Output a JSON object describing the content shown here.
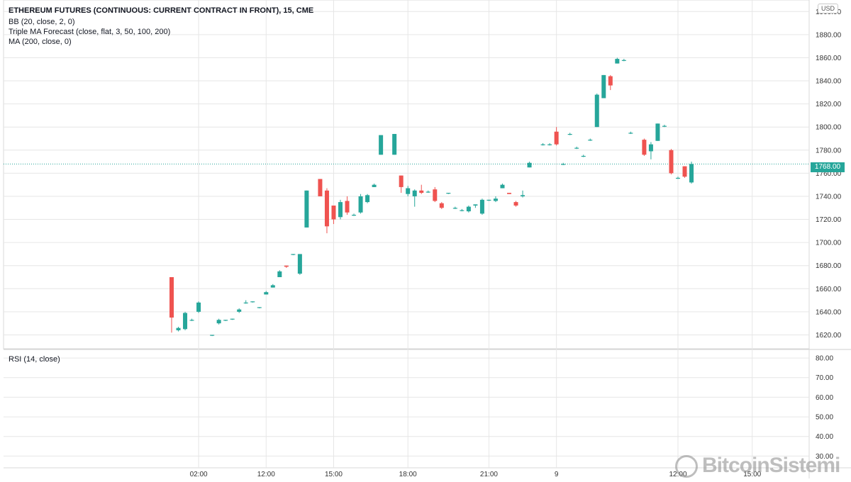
{
  "header": {
    "title": "ETHEREUM FUTURES (CONTINUOUS: CURRENT CONTRACT IN FRONT), 15, CME",
    "indicators": [
      "BB (20, close, 2, 0)",
      "Triple MA Forecast (close, flat, 3, 50, 100, 200)",
      "MA (200, close, 0)"
    ],
    "currency": "USD"
  },
  "price_tag": "1768.00",
  "rsi_label": "RSI (14, close)",
  "watermark": "BitcoinSistemi",
  "colors": {
    "up": "#26a69a",
    "down": "#ef5350",
    "grid": "#e6e6e6",
    "current_line": "#26a69a"
  },
  "chart_data": [
    {
      "type": "candlestick",
      "title": "ETHEREUM FUTURES (CONTINUOUS: CURRENT CONTRACT IN FRONT), 15, CME",
      "ylim": [
        1608,
        1910
      ],
      "y_ticks": [
        "1620.00",
        "1640.00",
        "1660.00",
        "1680.00",
        "1700.00",
        "1720.00",
        "1740.00",
        "1760.00",
        "1780.00",
        "1800.00",
        "1820.00",
        "1840.00",
        "1860.00",
        "1880.00",
        "1900.00"
      ],
      "x_ticks": [
        {
          "label": "02:00",
          "index": 4
        },
        {
          "label": "12:00",
          "index": 14
        },
        {
          "label": "15:00",
          "index": 24
        },
        {
          "label": "18:00",
          "index": 35
        },
        {
          "label": "21:00",
          "index": 47
        },
        {
          "label": "9",
          "index": 57
        },
        {
          "label": "12:00",
          "index": 75
        },
        {
          "label": "15:00",
          "index": 86
        }
      ],
      "current_price": 1768,
      "candles": [
        {
          "o": 1670,
          "h": 1670,
          "l": 1622,
          "c": 1635
        },
        {
          "o": 1624,
          "h": 1627,
          "l": 1623,
          "c": 1626
        },
        {
          "o": 1625,
          "h": 1640,
          "l": 1624,
          "c": 1639
        },
        {
          "o": 1633,
          "h": 1634,
          "l": 1632,
          "c": 1633
        },
        {
          "o": 1640,
          "h": 1649,
          "l": 1639,
          "c": 1648
        },
        {
          "o": 1620,
          "h": 1620,
          "l": 1619,
          "c": 1620
        },
        {
          "o": 1630,
          "h": 1634,
          "l": 1629,
          "c": 1633
        },
        {
          "o": 1633,
          "h": 1633,
          "l": 1632,
          "c": 1633
        },
        {
          "o": 1634,
          "h": 1634,
          "l": 1633,
          "c": 1634
        },
        {
          "o": 1640,
          "h": 1643,
          "l": 1639,
          "c": 1642
        },
        {
          "o": 1648,
          "h": 1650,
          "l": 1647,
          "c": 1648
        },
        {
          "o": 1649,
          "h": 1649,
          "l": 1648,
          "c": 1649
        },
        {
          "o": 1644,
          "h": 1644,
          "l": 1643,
          "c": 1644
        },
        {
          "o": 1655,
          "h": 1658,
          "l": 1655,
          "c": 1657
        },
        {
          "o": 1661,
          "h": 1664,
          "l": 1661,
          "c": 1663
        },
        {
          "o": 1670,
          "h": 1676,
          "l": 1670,
          "c": 1675
        },
        {
          "o": 1680,
          "h": 1680,
          "l": 1678,
          "c": 1679
        },
        {
          "o": 1690,
          "h": 1690,
          "l": 1689,
          "c": 1690
        },
        {
          "o": 1673,
          "h": 1690,
          "l": 1672,
          "c": 1690
        },
        {
          "o": 1713,
          "h": 1745,
          "l": 1713,
          "c": 1745
        },
        {
          "o": 1755,
          "h": 1755,
          "l": 1740,
          "c": 1740
        },
        {
          "o": 1745,
          "h": 1747,
          "l": 1708,
          "c": 1714
        },
        {
          "o": 1732,
          "h": 1732,
          "l": 1716,
          "c": 1720
        },
        {
          "o": 1722,
          "h": 1737,
          "l": 1720,
          "c": 1735
        },
        {
          "o": 1736,
          "h": 1740,
          "l": 1724,
          "c": 1726
        },
        {
          "o": 1724,
          "h": 1725,
          "l": 1723,
          "c": 1724
        },
        {
          "o": 1726,
          "h": 1742,
          "l": 1725,
          "c": 1740
        },
        {
          "o": 1735,
          "h": 1742,
          "l": 1734,
          "c": 1741
        },
        {
          "o": 1748,
          "h": 1751,
          "l": 1748,
          "c": 1750
        },
        {
          "o": 1776,
          "h": 1793,
          "l": 1776,
          "c": 1793
        },
        {
          "o": 1776,
          "h": 1794,
          "l": 1776,
          "c": 1794
        },
        {
          "o": 1758,
          "h": 1758,
          "l": 1743,
          "c": 1748
        },
        {
          "o": 1742,
          "h": 1749,
          "l": 1740,
          "c": 1747
        },
        {
          "o": 1740,
          "h": 1746,
          "l": 1731,
          "c": 1745
        },
        {
          "o": 1745,
          "h": 1750,
          "l": 1742,
          "c": 1743
        },
        {
          "o": 1744,
          "h": 1745,
          "l": 1743,
          "c": 1744
        },
        {
          "o": 1746,
          "h": 1748,
          "l": 1735,
          "c": 1736
        },
        {
          "o": 1734,
          "h": 1735,
          "l": 1729,
          "c": 1730
        },
        {
          "o": 1743,
          "h": 1743,
          "l": 1742,
          "c": 1743
        },
        {
          "o": 1730,
          "h": 1731,
          "l": 1729,
          "c": 1730
        },
        {
          "o": 1728,
          "h": 1729,
          "l": 1727,
          "c": 1728
        },
        {
          "o": 1727,
          "h": 1732,
          "l": 1726,
          "c": 1731
        },
        {
          "o": 1732,
          "h": 1733,
          "l": 1730,
          "c": 1733
        },
        {
          "o": 1725,
          "h": 1738,
          "l": 1724,
          "c": 1737
        },
        {
          "o": 1737,
          "h": 1737,
          "l": 1736,
          "c": 1737
        },
        {
          "o": 1736,
          "h": 1740,
          "l": 1735,
          "c": 1738
        },
        {
          "o": 1747,
          "h": 1751,
          "l": 1747,
          "c": 1750
        },
        {
          "o": 1743,
          "h": 1743,
          "l": 1742,
          "c": 1742
        },
        {
          "o": 1735,
          "h": 1736,
          "l": 1731,
          "c": 1732
        },
        {
          "o": 1740,
          "h": 1745,
          "l": 1739,
          "c": 1741
        },
        {
          "o": 1765,
          "h": 1770,
          "l": 1765,
          "c": 1769
        },
        {
          "o": 1785,
          "h": 1786,
          "l": 1784,
          "c": 1785
        },
        {
          "o": 1785,
          "h": 1786,
          "l": 1784,
          "c": 1785
        },
        {
          "o": 1796,
          "h": 1800,
          "l": 1784,
          "c": 1785
        },
        {
          "o": 1768,
          "h": 1769,
          "l": 1767,
          "c": 1768
        },
        {
          "o": 1794,
          "h": 1795,
          "l": 1793,
          "c": 1794
        },
        {
          "o": 1782,
          "h": 1783,
          "l": 1781,
          "c": 1782
        },
        {
          "o": 1775,
          "h": 1776,
          "l": 1774,
          "c": 1775
        },
        {
          "o": 1789,
          "h": 1790,
          "l": 1788,
          "c": 1789
        },
        {
          "o": 1800,
          "h": 1829,
          "l": 1800,
          "c": 1828
        },
        {
          "o": 1825,
          "h": 1845,
          "l": 1825,
          "c": 1845
        },
        {
          "o": 1844,
          "h": 1845,
          "l": 1832,
          "c": 1836
        },
        {
          "o": 1855,
          "h": 1860,
          "l": 1855,
          "c": 1859
        },
        {
          "o": 1858,
          "h": 1859,
          "l": 1857,
          "c": 1858
        },
        {
          "o": 1795,
          "h": 1796,
          "l": 1794,
          "c": 1795
        },
        {
          "o": 1789,
          "h": 1790,
          "l": 1775,
          "c": 1776
        },
        {
          "o": 1779,
          "h": 1787,
          "l": 1772,
          "c": 1785
        },
        {
          "o": 1788,
          "h": 1803,
          "l": 1788,
          "c": 1803
        },
        {
          "o": 1801,
          "h": 1802,
          "l": 1800,
          "c": 1801
        },
        {
          "o": 1780,
          "h": 1781,
          "l": 1759,
          "c": 1760
        },
        {
          "o": 1756,
          "h": 1757,
          "l": 1755,
          "c": 1756
        },
        {
          "o": 1766,
          "h": 1766,
          "l": 1756,
          "c": 1757
        },
        {
          "o": 1752,
          "h": 1770,
          "l": 1751,
          "c": 1768
        }
      ],
      "candle_x_indices": [
        0,
        1,
        2,
        3,
        4,
        6,
        7,
        8,
        9,
        10,
        11,
        12,
        13,
        14,
        15,
        16,
        17,
        18,
        19,
        20,
        22,
        23,
        24,
        25,
        26,
        27,
        28,
        29,
        30,
        31,
        33,
        34,
        35,
        36,
        37,
        38,
        39,
        40,
        41,
        42,
        43,
        44,
        45,
        46,
        47,
        48,
        49,
        50,
        51,
        52,
        53,
        55,
        56,
        57,
        58,
        59,
        60,
        61,
        62,
        63,
        64,
        65,
        66,
        67,
        68,
        70,
        71,
        72,
        73,
        74,
        75,
        76,
        77
      ]
    },
    {
      "type": "line",
      "title": "RSI (14, close)",
      "ylim": [
        24,
        84
      ],
      "y_ticks": [
        "30.00",
        "40.00",
        "50.00",
        "60.00",
        "70.00",
        "80.00"
      ],
      "series": []
    }
  ]
}
